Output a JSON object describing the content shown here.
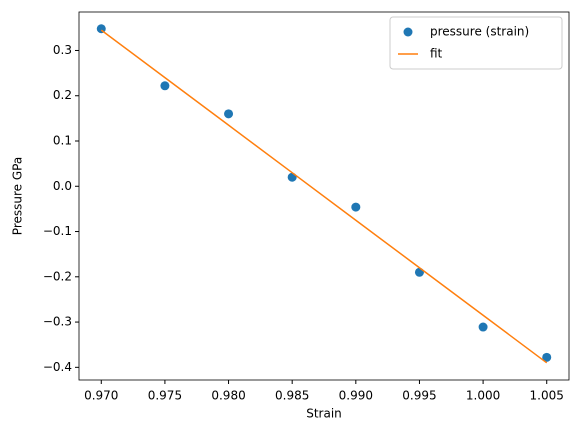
{
  "chart_data": {
    "type": "scatter",
    "x_label": "Strain",
    "y_label": "Pressure GPa",
    "x": [
      0.97,
      0.975,
      0.98,
      0.985,
      0.99,
      0.995,
      1.0,
      1.005
    ],
    "series": [
      {
        "name": "pressure (strain)",
        "color": "#1f77b4",
        "mark": "point",
        "values": [
          0.348,
          0.222,
          0.16,
          0.02,
          -0.046,
          -0.19,
          -0.311,
          -0.378
        ]
      },
      {
        "name": "fit",
        "color": "#ff7f0e",
        "mark": "line",
        "values": [
          0.345,
          0.24,
          0.135,
          0.03,
          -0.075,
          -0.18,
          -0.285,
          -0.39
        ]
      }
    ],
    "xlim": [
      0.96825,
      1.00675
    ],
    "ylim": [
      -0.428,
      0.385
    ],
    "xticks": [
      {
        "value": 0.97,
        "label": "0.970"
      },
      {
        "value": 0.975,
        "label": "0.975"
      },
      {
        "value": 0.98,
        "label": "0.980"
      },
      {
        "value": 0.985,
        "label": "0.985"
      },
      {
        "value": 0.99,
        "label": "0.990"
      },
      {
        "value": 0.995,
        "label": "0.995"
      },
      {
        "value": 1.0,
        "label": "1.000"
      },
      {
        "value": 1.005,
        "label": "1.005"
      }
    ],
    "yticks": [
      {
        "value": -0.4,
        "label": "−0.4"
      },
      {
        "value": -0.3,
        "label": "−0.3"
      },
      {
        "value": -0.2,
        "label": "−0.2"
      },
      {
        "value": -0.1,
        "label": "−0.1"
      },
      {
        "value": 0,
        "label": "0.0"
      },
      0.1,
      0.2,
      0.3
    ],
    "legend": "upper right",
    "grid": false
  }
}
